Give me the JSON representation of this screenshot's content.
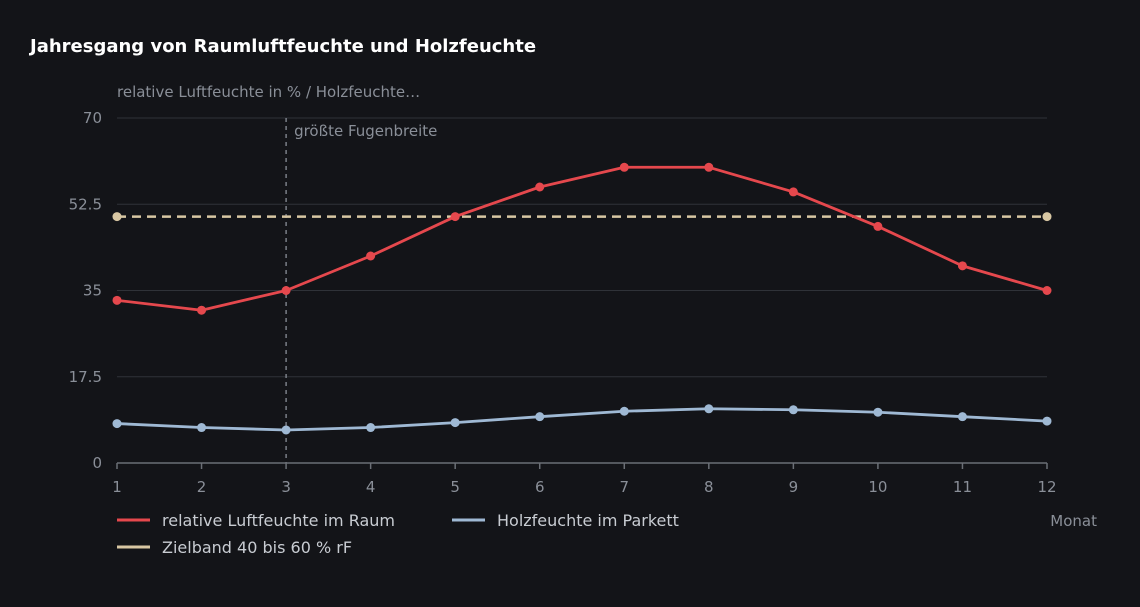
{
  "chart_data": {
    "type": "line",
    "title": "Jahresgang von Raumluftfeuchte und Holzfeuchte",
    "ylabel": "relative Luftfeuchte in % / Holzfeuchte…",
    "xlabel": "Monat",
    "x": [
      1,
      2,
      3,
      4,
      5,
      6,
      7,
      8,
      9,
      10,
      11,
      12
    ],
    "ylim": [
      0,
      70
    ],
    "yticks": [
      "0",
      "17.5",
      "35",
      "52.5",
      "70"
    ],
    "grid": true,
    "legend_position": "bottom-left",
    "series": [
      {
        "name": "relative Luftfeuchte im Raum",
        "color": "#e5484d",
        "style": "solid",
        "values": [
          33,
          31,
          35,
          42,
          50,
          56,
          60,
          60,
          55,
          48,
          40,
          35
        ]
      },
      {
        "name": "Holzfeuchte im Parkett",
        "color": "#9fb9d4",
        "style": "solid",
        "values": [
          8,
          7.2,
          6.7,
          7.2,
          8.2,
          9.4,
          10.5,
          11,
          10.8,
          10.3,
          9.4,
          8.5
        ]
      },
      {
        "name": "Zielband 40 bis 60 % rF",
        "color": "#d8c7a3",
        "style": "dashed",
        "values": [
          50,
          50,
          50,
          50,
          50,
          50,
          50,
          50,
          50,
          50,
          50,
          50
        ]
      }
    ],
    "annotations": [
      {
        "x": 3,
        "text": "größte Fugenbreite",
        "style": "dashed-vertical"
      }
    ]
  }
}
